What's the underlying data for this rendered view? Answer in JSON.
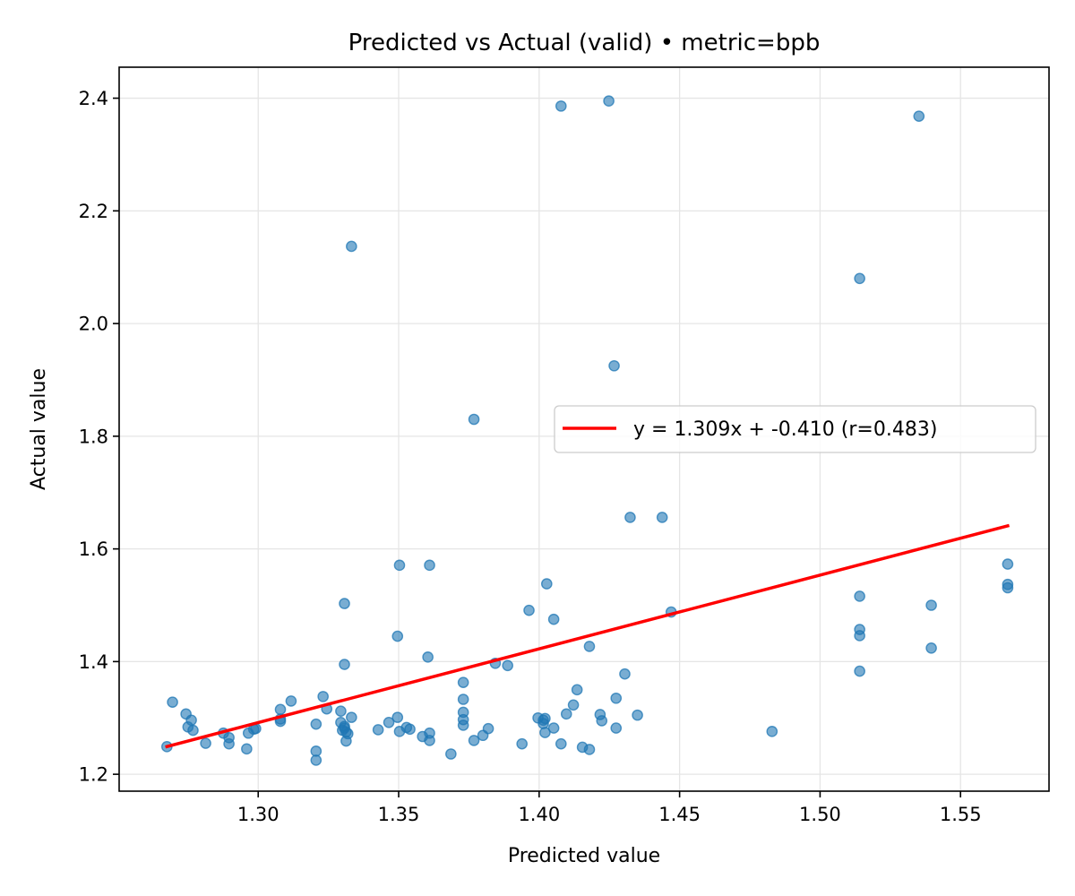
{
  "chart_data": {
    "type": "scatter",
    "title": "Predicted vs Actual (valid) • metric=bpb",
    "xlabel": "Predicted value",
    "ylabel": "Actual value",
    "xlim": [
      1.2505,
      1.5815
    ],
    "ylim": [
      1.17,
      2.455
    ],
    "xticks": [
      1.3,
      1.35,
      1.4,
      1.45,
      1.5,
      1.55
    ],
    "xtick_labels": [
      "1.30",
      "1.35",
      "1.40",
      "1.45",
      "1.50",
      "1.55"
    ],
    "yticks": [
      1.2,
      1.4,
      1.6,
      1.8,
      2.0,
      2.2,
      2.4
    ],
    "ytick_labels": [
      "1.2",
      "1.4",
      "1.6",
      "1.8",
      "2.0",
      "2.2",
      "2.4"
    ],
    "grid": true,
    "legend_position": "center-right",
    "colors": {
      "points": "#1f77b4",
      "fit_line": "#ff0000",
      "grid": "#e5e5e5"
    },
    "series": [
      {
        "kind": "points",
        "points": [
          [
            1.2675,
            1.249
          ],
          [
            1.2695,
            1.328
          ],
          [
            1.2743,
            1.307
          ],
          [
            1.275,
            1.284
          ],
          [
            1.2762,
            1.296
          ],
          [
            1.2768,
            1.278
          ],
          [
            1.2813,
            1.255
          ],
          [
            1.2876,
            1.273
          ],
          [
            1.2896,
            1.265
          ],
          [
            1.2896,
            1.254
          ],
          [
            1.2959,
            1.245
          ],
          [
            1.2965,
            1.273
          ],
          [
            1.2984,
            1.28
          ],
          [
            1.2991,
            1.281
          ],
          [
            1.3079,
            1.315
          ],
          [
            1.3079,
            1.294
          ],
          [
            1.3079,
            1.298
          ],
          [
            1.3117,
            1.33
          ],
          [
            1.3206,
            1.289
          ],
          [
            1.3206,
            1.241
          ],
          [
            1.3206,
            1.225
          ],
          [
            1.3231,
            1.338
          ],
          [
            1.3244,
            1.316
          ],
          [
            1.3294,
            1.292
          ],
          [
            1.3294,
            1.312
          ],
          [
            1.33,
            1.278
          ],
          [
            1.3307,
            1.282
          ],
          [
            1.3307,
            1.285
          ],
          [
            1.3307,
            1.503
          ],
          [
            1.3307,
            1.395
          ],
          [
            1.3313,
            1.275
          ],
          [
            1.3313,
            1.259
          ],
          [
            1.3319,
            1.272
          ],
          [
            1.3332,
            1.301
          ],
          [
            1.3332,
            2.137
          ],
          [
            1.3427,
            1.279
          ],
          [
            1.3465,
            1.292
          ],
          [
            1.3496,
            1.301
          ],
          [
            1.3496,
            1.445
          ],
          [
            1.3503,
            1.276
          ],
          [
            1.3503,
            1.571
          ],
          [
            1.3528,
            1.283
          ],
          [
            1.354,
            1.28
          ],
          [
            1.3585,
            1.267
          ],
          [
            1.3604,
            1.408
          ],
          [
            1.361,
            1.571
          ],
          [
            1.361,
            1.273
          ],
          [
            1.361,
            1.26
          ],
          [
            1.3686,
            1.236
          ],
          [
            1.373,
            1.363
          ],
          [
            1.373,
            1.333
          ],
          [
            1.373,
            1.31
          ],
          [
            1.373,
            1.297
          ],
          [
            1.373,
            1.287
          ],
          [
            1.3768,
            1.26
          ],
          [
            1.3768,
            1.83
          ],
          [
            1.38,
            1.269
          ],
          [
            1.3819,
            1.281
          ],
          [
            1.3844,
            1.397
          ],
          [
            1.3888,
            1.393
          ],
          [
            1.3939,
            1.254
          ],
          [
            1.3964,
            1.491
          ],
          [
            1.3996,
            1.3
          ],
          [
            1.4015,
            1.296
          ],
          [
            1.4015,
            1.29
          ],
          [
            1.4021,
            1.274
          ],
          [
            1.4021,
            1.299
          ],
          [
            1.4027,
            1.538
          ],
          [
            1.4052,
            1.475
          ],
          [
            1.4052,
            1.282
          ],
          [
            1.4078,
            1.254
          ],
          [
            1.4078,
            2.386
          ],
          [
            1.4097,
            1.307
          ],
          [
            1.4122,
            1.323
          ],
          [
            1.4135,
            1.35
          ],
          [
            1.4154,
            1.248
          ],
          [
            1.4179,
            1.427
          ],
          [
            1.4179,
            1.244
          ],
          [
            1.4217,
            1.306
          ],
          [
            1.4223,
            1.295
          ],
          [
            1.4248,
            2.395
          ],
          [
            1.4267,
            1.925
          ],
          [
            1.4274,
            1.335
          ],
          [
            1.4274,
            1.282
          ],
          [
            1.4305,
            1.378
          ],
          [
            1.4324,
            1.656
          ],
          [
            1.435,
            1.305
          ],
          [
            1.4438,
            1.656
          ],
          [
            1.447,
            1.488
          ],
          [
            1.4829,
            1.276
          ],
          [
            1.5141,
            1.516
          ],
          [
            1.5141,
            1.457
          ],
          [
            1.5141,
            1.446
          ],
          [
            1.5141,
            1.383
          ],
          [
            1.5141,
            2.08
          ],
          [
            1.5352,
            2.368
          ],
          [
            1.5396,
            1.5
          ],
          [
            1.5396,
            1.424
          ],
          [
            1.5668,
            1.573
          ],
          [
            1.5668,
            1.537
          ],
          [
            1.5668,
            1.531
          ]
        ]
      },
      {
        "kind": "fit_line",
        "name": "y = 1.309x + -0.410  (r=0.483)",
        "slope": 1.309,
        "intercept": -0.41,
        "x_range": [
          1.2675,
          1.5668
        ]
      }
    ]
  }
}
